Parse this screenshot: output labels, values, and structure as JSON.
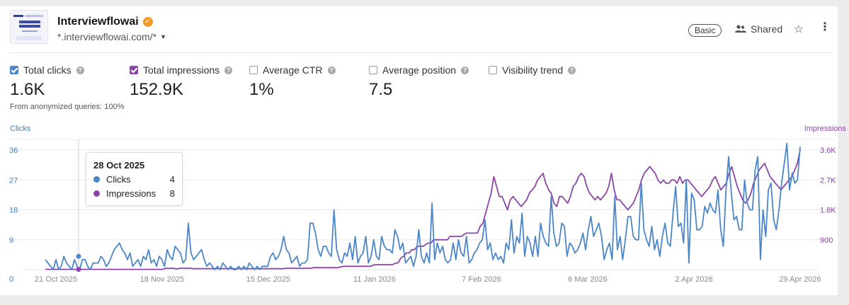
{
  "site": {
    "title": "Interviewflowai",
    "url": "*.interviewflowai.com/*",
    "badge": "Basic",
    "shared_label": "Shared"
  },
  "metrics": [
    {
      "label": "Total clicks",
      "value": "1.6K",
      "checked": true,
      "color": "#4b86c8"
    },
    {
      "label": "Total impressions",
      "value": "152.9K",
      "checked": true,
      "color": "#8b46a8"
    },
    {
      "label": "Average CTR",
      "value": "1%",
      "checked": false
    },
    {
      "label": "Average position",
      "value": "7.5",
      "checked": false
    },
    {
      "label": "Visibility trend",
      "value": "",
      "checked": false
    }
  ],
  "note": "From anonymized queries: 100%",
  "tooltip": {
    "date": "28 Oct 2025",
    "rows": [
      {
        "label": "Clicks",
        "value": "4",
        "color": "#4b86c8"
      },
      {
        "label": "Impressions",
        "value": "8",
        "color": "#8b46a8"
      }
    ]
  },
  "chart_data": {
    "type": "line",
    "xlabel": "",
    "left_axis": {
      "title": "Clicks",
      "ylim": [
        0,
        36
      ],
      "ticks": [
        "0",
        "9",
        "18",
        "27",
        "36"
      ]
    },
    "right_axis": {
      "title": "Impressions",
      "ylim": [
        0,
        3600
      ],
      "ticks": [
        "900",
        "1.8K",
        "2.7K",
        "3.6K"
      ]
    },
    "x_tick_labels": [
      "21 Oct 2025",
      "18 Nov 2025",
      "15 Dec 2025",
      "11 Jan 2026",
      "7 Feb 2026",
      "6 Mar 2026",
      "2 Apr 2026",
      "29 Apr 2026"
    ],
    "grid": true,
    "series": [
      {
        "name": "Clicks",
        "axis": "left",
        "color": "#4b86c8",
        "values": [
          3,
          2,
          1,
          0,
          3,
          0,
          1,
          4,
          2,
          1,
          0,
          3,
          1,
          0,
          3,
          3,
          1,
          0,
          2,
          2,
          2,
          4,
          3,
          1,
          2,
          4,
          6,
          7,
          8,
          6,
          5,
          3,
          5,
          1,
          2,
          3,
          1,
          4,
          3,
          6,
          2,
          3,
          1,
          4,
          3,
          1,
          6,
          4,
          3,
          7,
          6,
          5,
          2,
          3,
          14,
          5,
          3,
          4,
          5,
          6,
          3,
          1,
          2,
          1,
          0,
          1,
          0,
          2,
          1,
          0,
          1,
          0,
          0,
          1,
          0,
          1,
          0,
          2,
          1,
          0,
          1,
          0,
          1,
          1,
          1,
          4,
          5,
          3,
          4,
          6,
          10,
          6,
          5,
          2,
          3,
          4,
          1,
          2,
          2,
          3,
          14,
          14,
          11,
          6,
          4,
          7,
          7,
          5,
          4,
          18,
          6,
          3,
          2,
          5,
          4,
          8,
          3,
          10,
          2,
          4,
          5,
          10,
          2,
          4,
          9,
          4,
          3,
          10,
          7,
          6,
          6,
          5,
          12,
          10,
          6,
          8,
          2,
          3,
          4,
          1,
          4,
          12,
          4,
          2,
          5,
          2,
          20,
          3,
          8,
          5,
          7,
          3,
          2,
          3,
          8,
          3,
          9,
          5,
          4,
          10,
          2,
          3,
          5,
          6,
          8,
          9,
          15,
          6,
          8,
          3,
          5,
          3,
          4,
          2,
          8,
          6,
          15,
          5,
          10,
          8,
          17,
          4,
          10,
          8,
          4,
          10,
          4,
          14,
          10,
          8,
          7,
          22,
          11,
          7,
          8,
          14,
          13,
          4,
          8,
          7,
          5,
          6,
          8,
          11,
          6,
          12,
          16,
          10,
          12,
          14,
          10,
          3,
          6,
          8,
          3,
          22,
          6,
          10,
          3,
          9,
          16,
          16,
          10,
          9,
          9,
          26,
          12,
          9,
          7,
          13,
          6,
          9,
          4,
          10,
          14,
          8,
          7,
          17,
          25,
          13,
          14,
          8,
          27,
          2,
          23,
          21,
          12,
          12,
          13,
          19,
          17,
          20,
          18,
          17,
          24,
          12,
          7,
          24,
          34,
          23,
          15,
          16,
          12,
          12,
          27,
          20,
          18,
          18,
          30,
          34,
          3,
          18,
          10,
          24,
          26,
          15,
          12,
          18,
          26,
          32,
          38,
          24,
          29,
          26,
          27,
          37
        ]
      },
      {
        "name": "Impressions",
        "axis": "right",
        "color": "#8b46a8",
        "values": [
          8,
          8,
          8,
          8,
          8,
          8,
          8,
          8,
          8,
          8,
          8,
          8,
          8,
          8,
          8,
          8,
          8,
          8,
          8,
          8,
          8,
          8,
          8,
          8,
          8,
          8,
          8,
          8,
          8,
          8,
          8,
          8,
          8,
          8,
          8,
          8,
          8,
          8,
          8,
          8,
          8,
          8,
          8,
          8,
          40,
          40,
          40,
          40,
          20,
          40,
          40,
          40,
          40,
          40,
          30,
          30,
          30,
          30,
          30,
          30,
          30,
          30,
          30,
          30,
          30,
          30,
          30,
          30,
          30,
          30,
          30,
          30,
          30,
          30,
          30,
          30,
          30,
          30,
          30,
          30,
          30,
          30,
          30,
          30,
          30,
          30,
          30,
          30,
          40,
          40,
          40,
          40,
          40,
          40,
          40,
          40,
          40,
          40,
          60,
          60,
          60,
          60,
          60,
          60,
          60,
          60,
          60,
          60,
          80,
          100,
          100,
          100,
          100,
          100,
          100,
          100,
          100,
          100,
          100,
          100,
          140,
          150,
          150,
          150,
          150,
          150,
          150,
          150,
          200,
          200,
          350,
          400,
          500,
          500,
          600,
          600,
          700,
          700,
          700,
          750,
          800,
          800,
          900,
          900,
          900,
          900,
          900,
          900,
          1000,
          1000,
          1000,
          1000,
          1000,
          1050,
          1100,
          1100,
          1100,
          1100,
          1100,
          1300,
          1400,
          1700,
          2000,
          2300,
          2800,
          2500,
          2200,
          2200,
          2000,
          1800,
          2100,
          2200,
          2100,
          2000,
          1900,
          2000,
          2100,
          2300,
          2400,
          2500,
          2700,
          2800,
          2900,
          2600,
          2400,
          2300,
          2000,
          1900,
          2200,
          2200,
          2100,
          2000,
          2200,
          2500,
          2600,
          2800,
          2900,
          2800,
          2500,
          2300,
          2200,
          2100,
          2200,
          2100,
          2200,
          2300,
          2500,
          2900,
          2400,
          2100,
          2100,
          2000,
          1900,
          1800,
          1900,
          2000,
          2200,
          2400,
          2700,
          2900,
          3000,
          3100,
          3000,
          2900,
          2700,
          2600,
          2700,
          2600,
          2600,
          2700,
          2700,
          2600,
          2800,
          2600,
          2700,
          2700,
          2600,
          2500,
          2400,
          2300,
          2200,
          2300,
          2400,
          2500,
          2700,
          2800,
          2600,
          2400,
          2500,
          2600,
          2900,
          3100,
          2800,
          2500,
          2300,
          2100,
          2000,
          2100,
          2300,
          2600,
          2800,
          3000,
          3100,
          3200,
          3000,
          2800,
          2700,
          2600,
          2500,
          2400,
          2500,
          2600,
          2700,
          2800,
          3000,
          3200,
          3600
        ]
      }
    ]
  }
}
